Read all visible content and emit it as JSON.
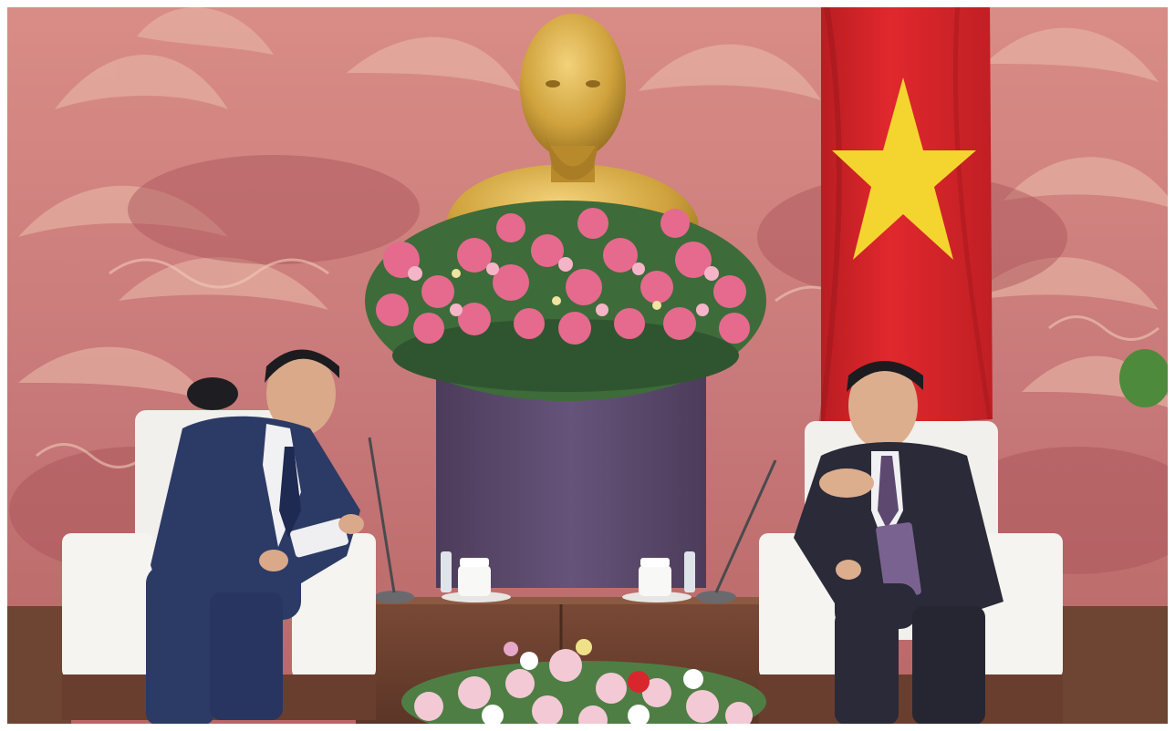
{
  "image": {
    "kind": "photograph",
    "scene": "meeting-room-reception",
    "colors": {
      "wall": "#c97a7a",
      "wall_light": "#e3aaa0",
      "wall_dark": "#a9555a",
      "gold": "#cfa23c",
      "flag_red": "#d8252a",
      "flag_star": "#f4d52f",
      "suit_navy": "#2c3a66",
      "suit_dark": "#2a2a38",
      "chair_white": "#f2f0ec",
      "wood": "#6a3e2e",
      "podium": "#5b4a66",
      "flower_pink": "#e56a8e",
      "leaf_green": "#3e6b3a"
    }
  }
}
